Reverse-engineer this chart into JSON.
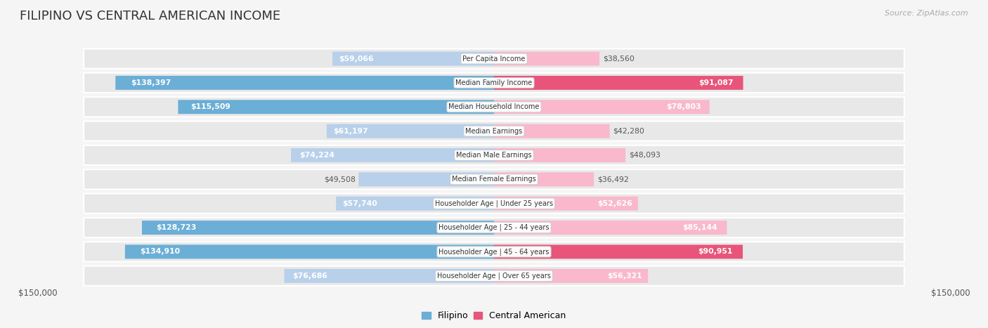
{
  "title": "FILIPINO VS CENTRAL AMERICAN INCOME",
  "source": "Source: ZipAtlas.com",
  "categories": [
    "Per Capita Income",
    "Median Family Income",
    "Median Household Income",
    "Median Earnings",
    "Median Male Earnings",
    "Median Female Earnings",
    "Householder Age | Under 25 years",
    "Householder Age | 25 - 44 years",
    "Householder Age | 45 - 64 years",
    "Householder Age | Over 65 years"
  ],
  "filipino_values": [
    59066,
    138397,
    115509,
    61197,
    74224,
    49508,
    57740,
    128723,
    134910,
    76686
  ],
  "central_american_values": [
    38560,
    91087,
    78803,
    42280,
    48093,
    36492,
    52626,
    85144,
    90951,
    56321
  ],
  "max_value": 150000,
  "fil_bar_light": "#b8d0ea",
  "fil_bar_dark": "#6baed6",
  "ca_bar_light": "#f9b8cc",
  "ca_bar_dark": "#e8547a",
  "fil_legend_color": "#6baed6",
  "ca_legend_color": "#e8547a",
  "row_bg": "#e8e8e8",
  "bg_color": "#f5f5f5",
  "label_outside_color": "#555555",
  "label_inside_color": "#ffffff",
  "cat_label_color": "#333333",
  "title_color": "#333333",
  "source_color": "#aaaaaa",
  "legend_filipino": "Filipino",
  "legend_central_american": "Central American",
  "x_label_left": "$150,000",
  "x_label_right": "$150,000",
  "white_label_threshold": 50000,
  "darker_threshold": 90000
}
